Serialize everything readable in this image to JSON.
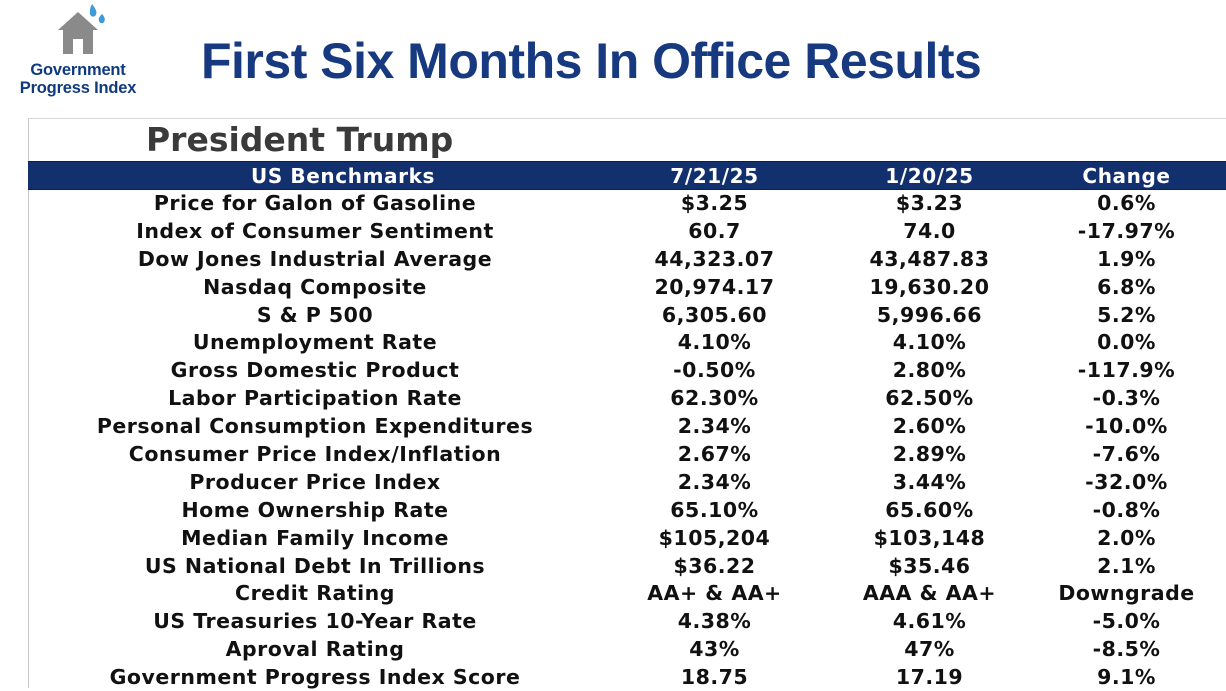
{
  "logo": {
    "icon": "house-icon",
    "line1": "Government",
    "line2": "Progress Index",
    "colors": {
      "text": "#0f3b7e",
      "house": "#8a8a8a",
      "drops": "#3d9bd6"
    }
  },
  "title": "First Six Months In Office Results",
  "subtitle": "President Trump",
  "colors": {
    "header_bg": "#13306e",
    "title": "#16397f"
  },
  "table": {
    "headers": [
      "US Benchmarks",
      "7/21/25",
      "1/20/25",
      "Change"
    ],
    "rows": [
      [
        "Price for Galon of Gasoline",
        "$3.25",
        "$3.23",
        "0.6%"
      ],
      [
        "Index of Consumer Sentiment",
        "60.7",
        "74.0",
        "-17.97%"
      ],
      [
        "Dow Jones Industrial Average",
        "44,323.07",
        "43,487.83",
        "1.9%"
      ],
      [
        "Nasdaq Composite",
        "20,974.17",
        "19,630.20",
        "6.8%"
      ],
      [
        "S & P 500",
        "6,305.60",
        "5,996.66",
        "5.2%"
      ],
      [
        "Unemployment Rate",
        "4.10%",
        "4.10%",
        "0.0%"
      ],
      [
        "Gross Domestic Product",
        "-0.50%",
        "2.80%",
        "-117.9%"
      ],
      [
        "Labor Participation Rate",
        "62.30%",
        "62.50%",
        "-0.3%"
      ],
      [
        "Personal Consumption Expenditures",
        "2.34%",
        "2.60%",
        "-10.0%"
      ],
      [
        "Consumer Price Index/Inflation",
        "2.67%",
        "2.89%",
        "-7.6%"
      ],
      [
        "Producer Price Index",
        "2.34%",
        "3.44%",
        "-32.0%"
      ],
      [
        "Home Ownership Rate",
        "65.10%",
        "65.60%",
        "-0.8%"
      ],
      [
        "Median Family Income",
        "$105,204",
        "$103,148",
        "2.0%"
      ],
      [
        "US National Debt In Trillions",
        "$36.22",
        "$35.46",
        "2.1%"
      ],
      [
        "Credit Rating",
        "AA+ & AA+",
        "AAA & AA+",
        "Downgrade"
      ],
      [
        "US Treasuries 10-Year Rate",
        "4.38%",
        "4.61%",
        "-5.0%"
      ],
      [
        "Aproval Rating",
        "43%",
        "47%",
        "-8.5%"
      ],
      [
        "Government Progress Index Score",
        "18.75",
        "17.19",
        "9.1%"
      ]
    ]
  }
}
